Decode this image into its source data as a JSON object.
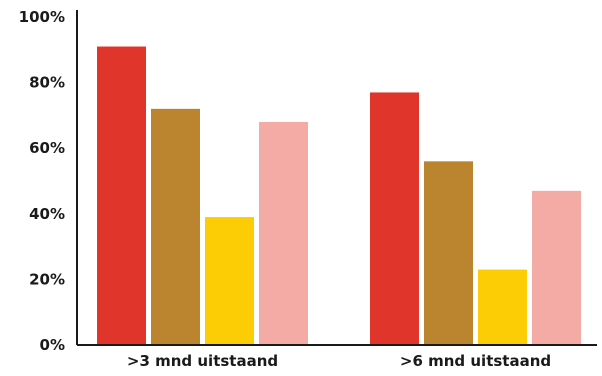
{
  "chart_data": {
    "type": "bar",
    "title": "",
    "xlabel": "",
    "ylabel": "",
    "categories": [
      ">3 mnd uitstaand",
      ">6 mnd uitstaand"
    ],
    "ylim": [
      0,
      100
    ],
    "yticks": [
      0,
      20,
      40,
      60,
      80,
      100
    ],
    "ytick_labels": [
      "0%",
      "20%",
      "40%",
      "60%",
      "80%",
      "100%"
    ],
    "grid": false,
    "legend": "none",
    "series": [
      {
        "color": "#e0352b",
        "values": [
          91,
          77
        ]
      },
      {
        "color": "#bb842e",
        "values": [
          72,
          56
        ]
      },
      {
        "color": "#fccc04",
        "values": [
          39,
          23
        ]
      },
      {
        "color": "#f4aba6",
        "values": [
          68,
          47
        ]
      }
    ]
  }
}
